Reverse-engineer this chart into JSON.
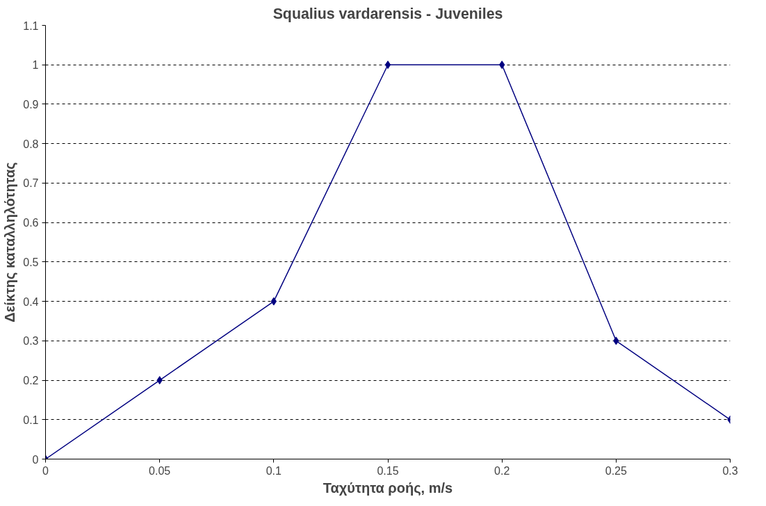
{
  "chart_data": {
    "type": "line",
    "title": "Squalius vardarensis - Juveniles",
    "xlabel": "Ταχύτητα ροής, m/s",
    "ylabel": "Δείκτης καταλληλότητας",
    "x": [
      0,
      0.05,
      0.1,
      0.15,
      0.2,
      0.25,
      0.3
    ],
    "series": [
      {
        "color": "#000080",
        "values": [
          0,
          0.2,
          0.4,
          1,
          1,
          0.3,
          0.1
        ]
      }
    ],
    "xlim": [
      0,
      0.3
    ],
    "xticks": [
      0,
      0.05,
      0.1,
      0.15,
      0.2,
      0.25,
      0.3
    ],
    "ylim": [
      0,
      1.1
    ],
    "yticks": [
      0,
      0.1,
      0.2,
      0.3,
      0.4,
      0.5,
      0.6,
      0.7,
      0.8,
      0.9,
      1,
      1.1
    ],
    "grid": "y",
    "marker": "diamond",
    "line_style": "solid"
  }
}
